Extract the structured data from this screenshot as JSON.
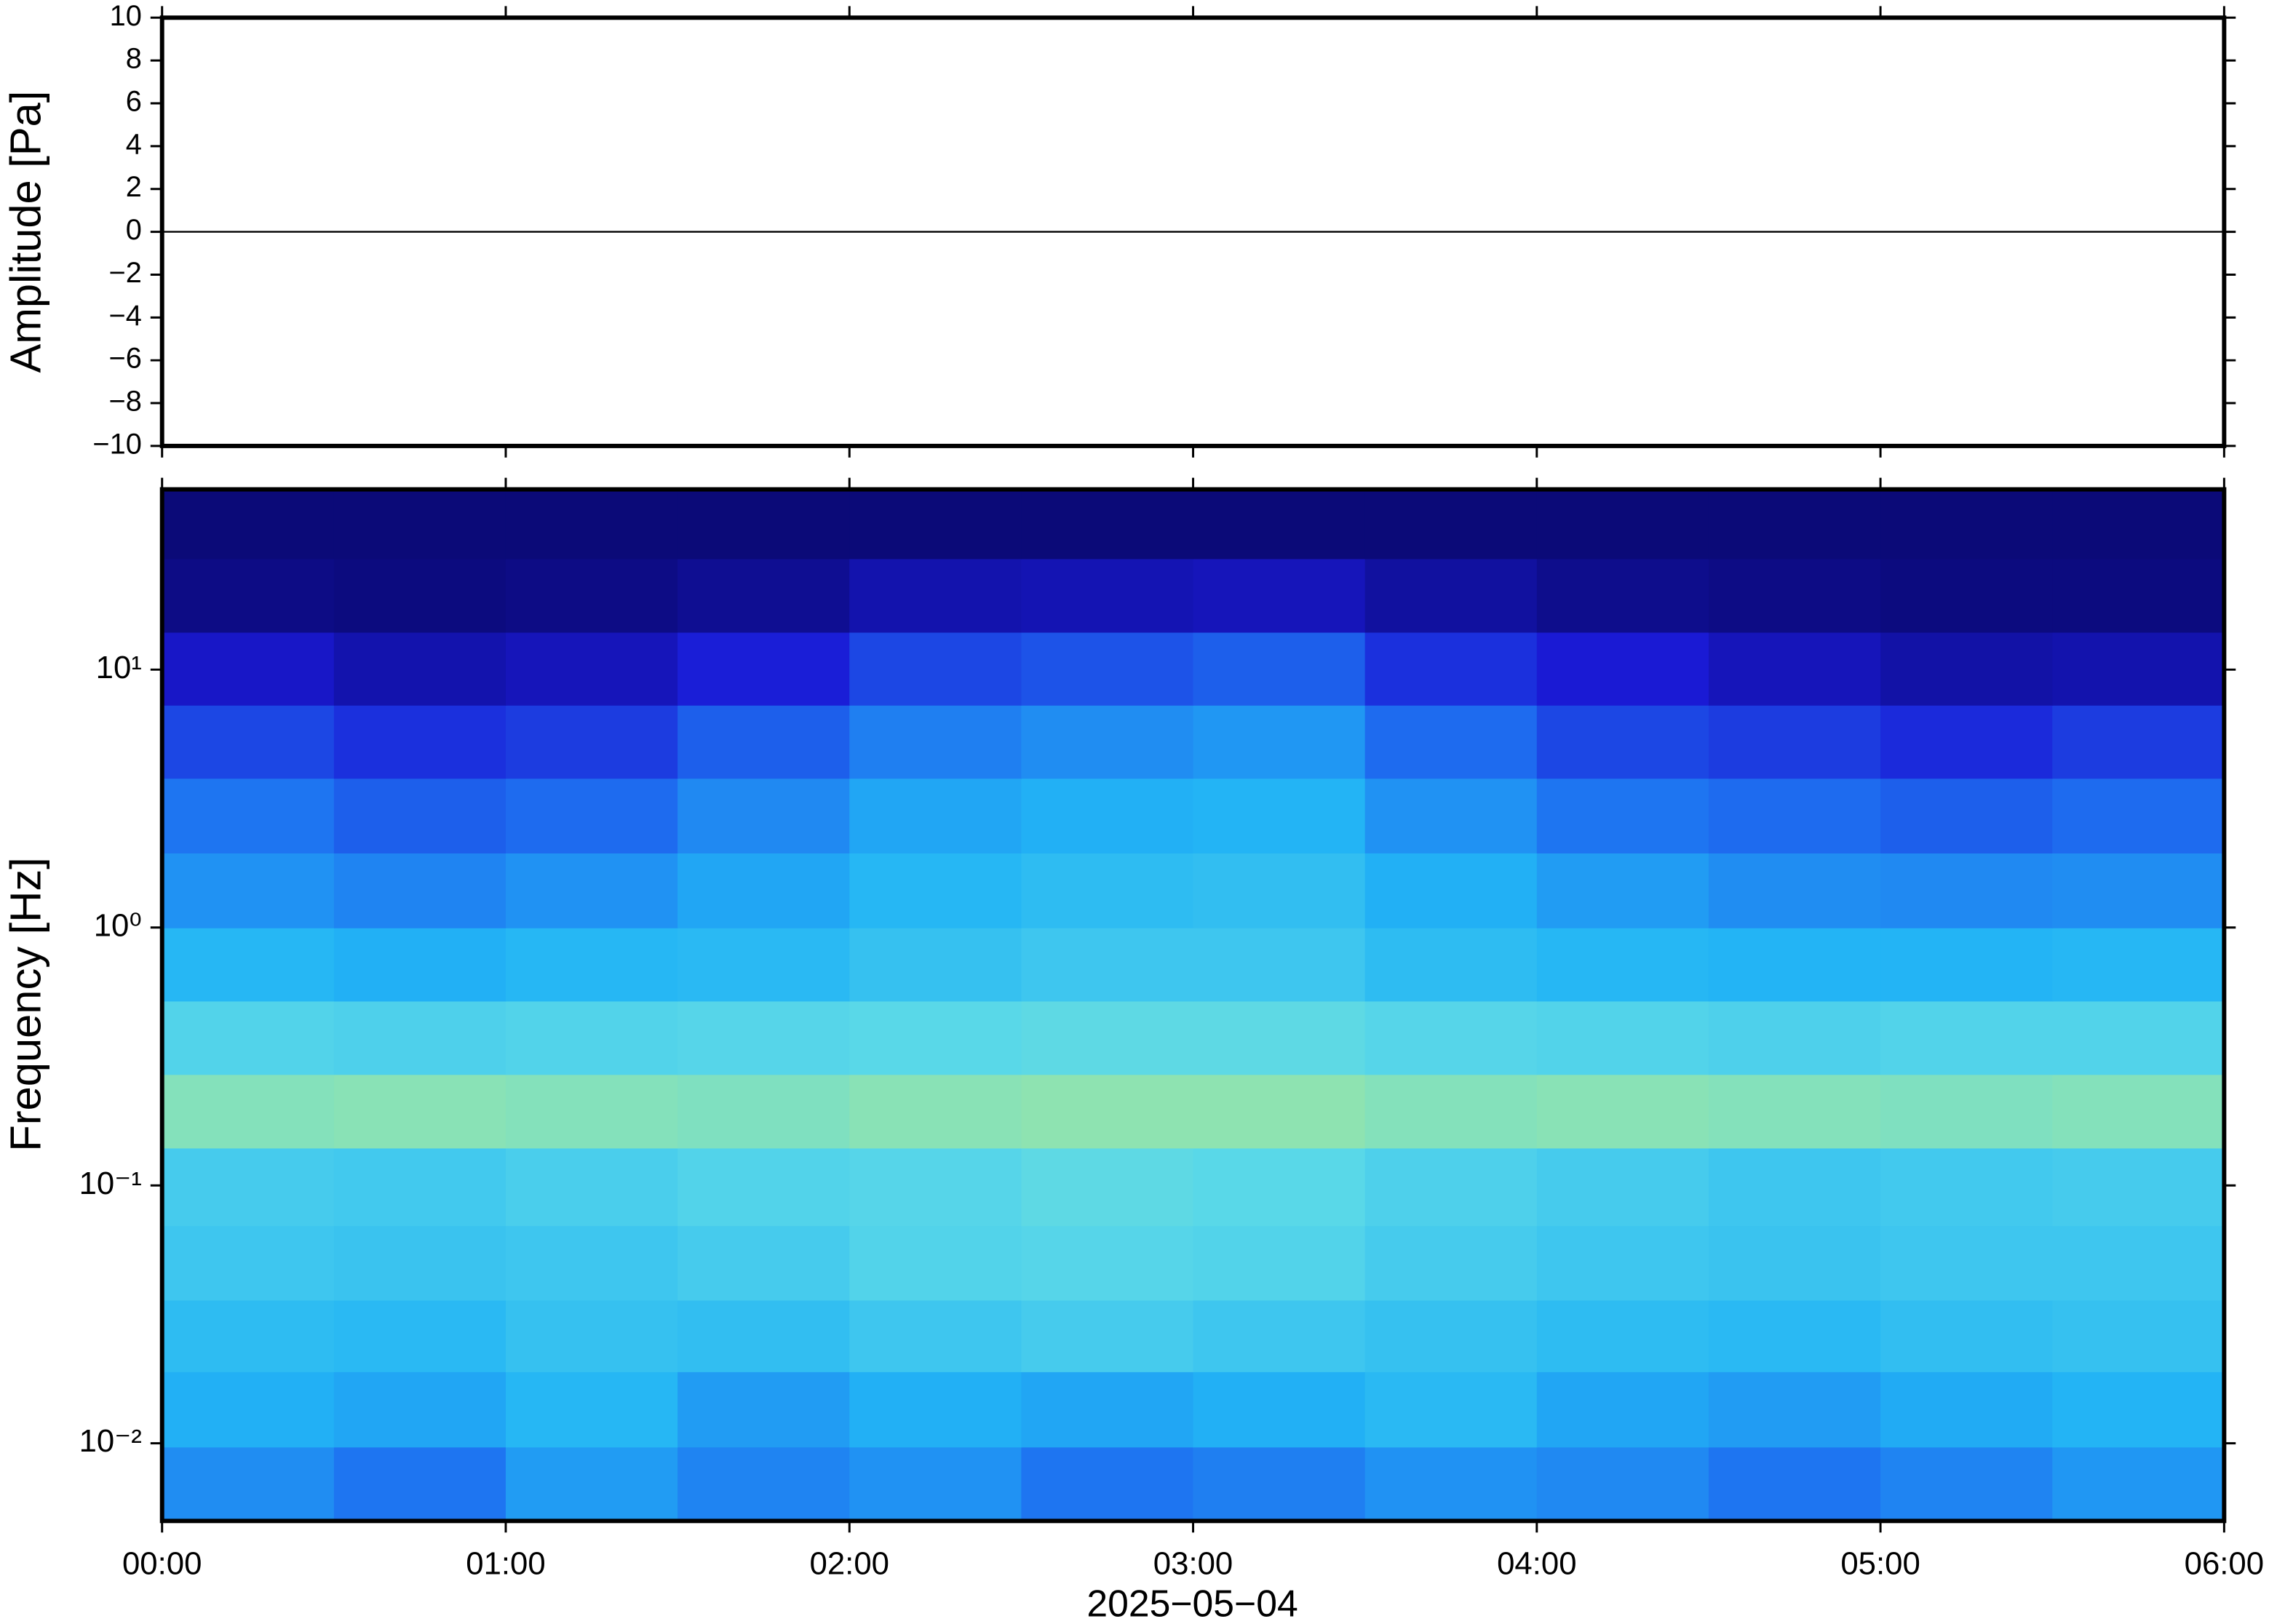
{
  "chart_data": [
    {
      "type": "line",
      "ylabel": "Amplitude [Pa]",
      "x": [
        0,
        0.5,
        1,
        1.5,
        2,
        2.5,
        3,
        3.5,
        4,
        4.5,
        5,
        5.5,
        6
      ],
      "values": [
        0,
        0,
        0,
        0,
        0,
        0,
        0,
        0,
        0,
        0,
        0,
        0,
        0
      ],
      "color": "#000000",
      "xlim": [
        0,
        6
      ],
      "ylim": [
        -10,
        10
      ],
      "yticks": [
        {
          "value": -10,
          "label": "−10"
        },
        {
          "value": -8,
          "label": "−8"
        },
        {
          "value": -6,
          "label": "−6"
        },
        {
          "value": -4,
          "label": "−4"
        },
        {
          "value": -2,
          "label": "−2"
        },
        0,
        2,
        4,
        6,
        8,
        10
      ]
    },
    {
      "type": "heatmap",
      "ylabel": "Frequency [Hz]",
      "xlabel": "2025−05−04",
      "xlim": [
        0,
        6
      ],
      "xticks": [
        {
          "value": 0,
          "label": "00:00"
        },
        {
          "value": 1,
          "label": "01:00"
        },
        {
          "value": 2,
          "label": "02:00"
        },
        {
          "value": 3,
          "label": "03:00"
        },
        {
          "value": 4,
          "label": "04:00"
        },
        {
          "value": 5,
          "label": "05:00"
        },
        {
          "value": 6,
          "label": "06:00"
        }
      ],
      "ylim": [
        0.005,
        50
      ],
      "log_y": true,
      "yticks": [
        {
          "value": 0.01,
          "label": "10⁻²"
        },
        {
          "value": 0.1,
          "label": "10⁻¹"
        },
        {
          "value": 1,
          "label": "10⁰"
        },
        {
          "value": 10,
          "label": "10¹"
        }
      ],
      "xbins": [
        0,
        0.5,
        1,
        1.5,
        2,
        2.5,
        3,
        3.5,
        4,
        4.5,
        5,
        5.5,
        6
      ],
      "ybins": [
        0.005,
        0.0097,
        0.019,
        0.036,
        0.07,
        0.14,
        0.27,
        0.52,
        1,
        1.95,
        3.8,
        7.3,
        14,
        27,
        50
      ],
      "zlim": [
        0,
        1
      ],
      "colorscale": [
        "#0b0a78",
        "#1a1ad6",
        "#1e6ef0",
        "#22b4f5",
        "#5ad8e8",
        "#9ee6a0",
        "#e6ee80",
        "#f5a050"
      ],
      "z": [
        [
          0.35,
          0.3,
          0.38,
          0.33,
          0.36,
          0.3,
          0.32,
          0.36,
          0.34,
          0.3,
          0.33,
          0.37
        ],
        [
          0.42,
          0.4,
          0.44,
          0.38,
          0.42,
          0.4,
          0.42,
          0.45,
          0.4,
          0.38,
          0.41,
          0.43
        ],
        [
          0.46,
          0.45,
          0.48,
          0.47,
          0.5,
          0.52,
          0.5,
          0.48,
          0.46,
          0.45,
          0.47,
          0.48
        ],
        [
          0.5,
          0.49,
          0.5,
          0.52,
          0.55,
          0.56,
          0.55,
          0.52,
          0.5,
          0.49,
          0.5,
          0.5
        ],
        [
          0.52,
          0.51,
          0.53,
          0.55,
          0.56,
          0.58,
          0.57,
          0.54,
          0.52,
          0.5,
          0.51,
          0.52
        ],
        [
          0.66,
          0.67,
          0.66,
          0.65,
          0.67,
          0.68,
          0.68,
          0.66,
          0.67,
          0.66,
          0.65,
          0.66
        ],
        [
          0.55,
          0.54,
          0.55,
          0.56,
          0.57,
          0.58,
          0.58,
          0.56,
          0.55,
          0.54,
          0.55,
          0.55
        ],
        [
          0.44,
          0.42,
          0.44,
          0.45,
          0.48,
          0.5,
          0.5,
          0.46,
          0.44,
          0.43,
          0.43,
          0.44
        ],
        [
          0.36,
          0.33,
          0.36,
          0.4,
          0.44,
          0.46,
          0.47,
          0.42,
          0.38,
          0.35,
          0.34,
          0.35
        ],
        [
          0.3,
          0.26,
          0.28,
          0.34,
          0.4,
          0.42,
          0.43,
          0.36,
          0.3,
          0.28,
          0.26,
          0.28
        ],
        [
          0.22,
          0.18,
          0.2,
          0.26,
          0.32,
          0.35,
          0.37,
          0.28,
          0.22,
          0.2,
          0.17,
          0.2
        ],
        [
          0.12,
          0.08,
          0.1,
          0.15,
          0.22,
          0.24,
          0.26,
          0.18,
          0.14,
          0.1,
          0.07,
          0.08
        ],
        [
          0.02,
          0.01,
          0.02,
          0.04,
          0.08,
          0.09,
          0.1,
          0.06,
          0.03,
          0.02,
          0.01,
          0.01
        ],
        [
          0,
          0,
          0,
          0,
          0,
          0,
          0,
          0,
          0,
          0,
          0,
          0
        ]
      ]
    }
  ]
}
